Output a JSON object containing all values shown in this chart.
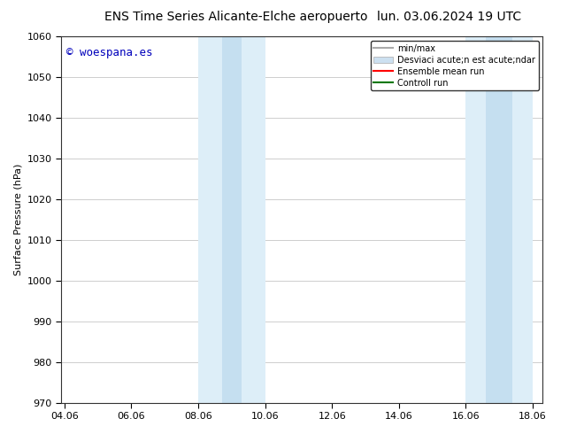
{
  "title_left": "ENS Time Series Alicante-Elche aeropuerto",
  "title_right": "lun. 03.06.2024 19 UTC",
  "ylabel": "Surface Pressure (hPa)",
  "ylim": [
    970,
    1060
  ],
  "yticks": [
    970,
    980,
    990,
    1000,
    1010,
    1020,
    1030,
    1040,
    1050,
    1060
  ],
  "xtick_labels": [
    "04.06",
    "06.06",
    "08.06",
    "10.06",
    "12.06",
    "14.06",
    "16.06",
    "18.06"
  ],
  "xtick_positions": [
    0,
    2,
    4,
    6,
    8,
    10,
    12,
    14
  ],
  "xlim": [
    -0.1,
    14.3
  ],
  "shaded_bands": [
    {
      "xmin": 4.0,
      "xmax": 6.0,
      "color": "#ddeef8"
    },
    {
      "xmin": 12.0,
      "xmax": 14.0,
      "color": "#ddeef8"
    }
  ],
  "shaded_bands_inner": [
    {
      "xmin": 4.7,
      "xmax": 5.3,
      "color": "#c5dff0"
    },
    {
      "xmin": 12.6,
      "xmax": 13.4,
      "color": "#c5dff0"
    }
  ],
  "watermark_text": "© woespana.es",
  "watermark_color": "#0000bb",
  "background_color": "#ffffff",
  "legend_label_minmax": "min/max",
  "legend_label_std": "Desviaci acute;n est acute;ndar",
  "legend_label_ensemble": "Ensemble mean run",
  "legend_label_control": "Controll run",
  "legend_color_minmax": "#aaaaaa",
  "legend_color_std": "#cce0f0",
  "legend_color_ensemble": "#ff0000",
  "legend_color_control": "#007700",
  "title_fontsize": 10,
  "ylabel_fontsize": 8,
  "tick_fontsize": 8,
  "watermark_fontsize": 9,
  "legend_fontsize": 7
}
